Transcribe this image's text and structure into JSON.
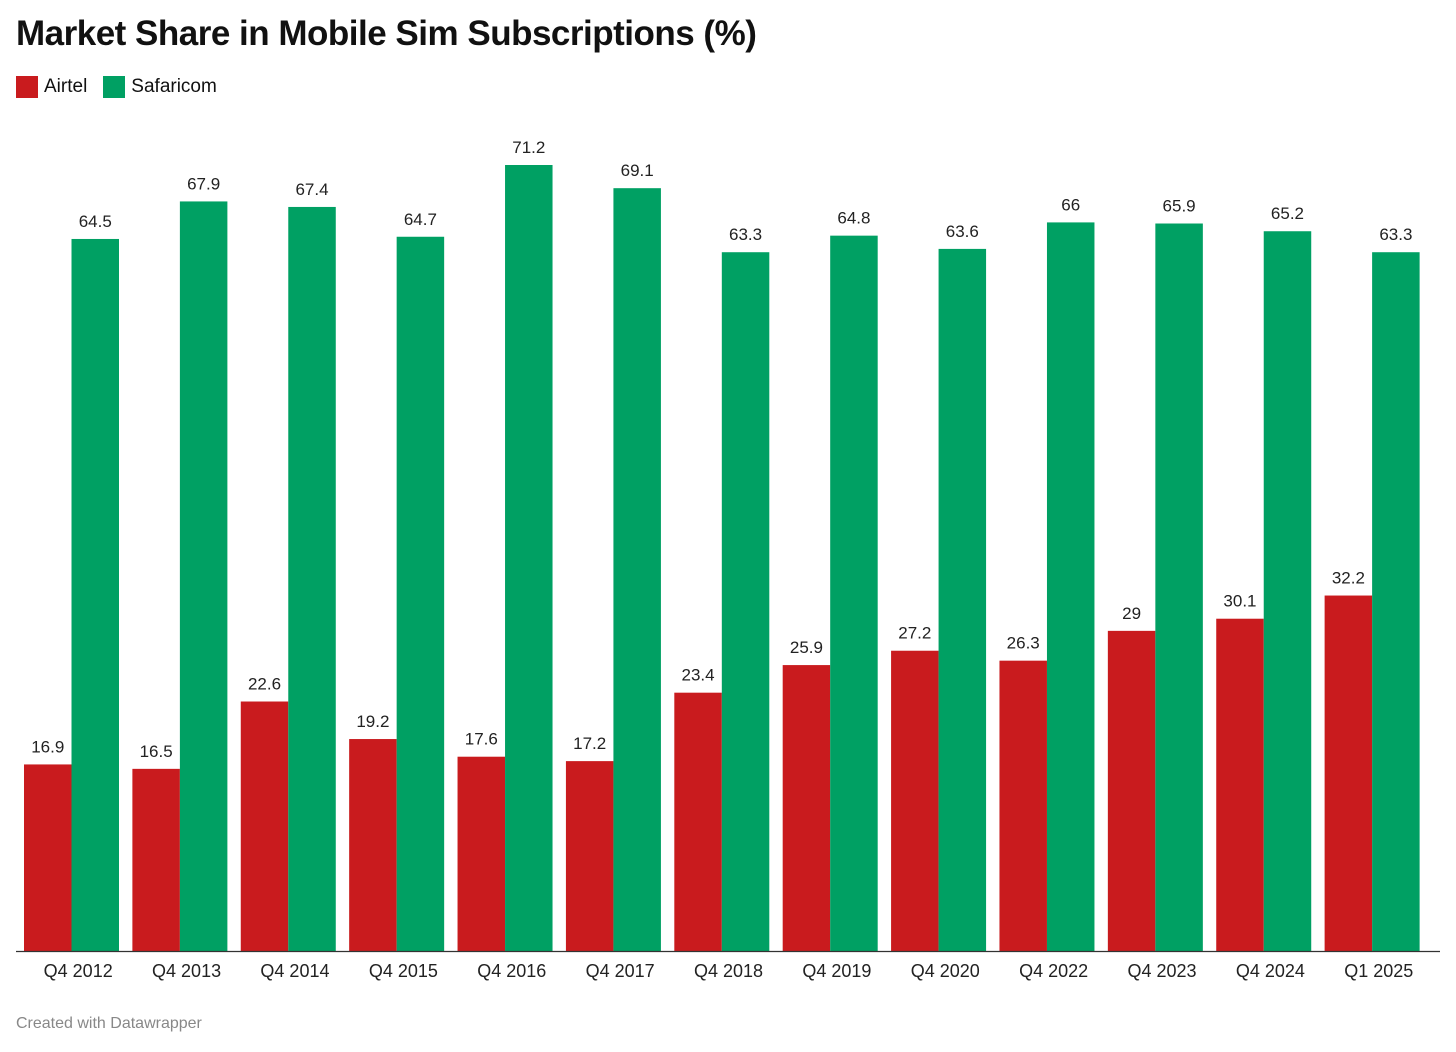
{
  "chart_data": {
    "type": "bar",
    "title": "Market Share in Mobile Sim Subscriptions (%)",
    "categories": [
      "Q4 2012",
      "Q4 2013",
      "Q4 2014",
      "Q4 2015",
      "Q4 2016",
      "Q4 2017",
      "Q4 2018",
      "Q4 2019",
      "Q4 2020",
      "Q4 2022",
      "Q4 2023",
      "Q4 2024",
      "Q1 2025"
    ],
    "series": [
      {
        "name": "Airtel",
        "color": "#c91b1e",
        "values": [
          16.9,
          16.5,
          22.6,
          19.2,
          17.6,
          17.2,
          23.4,
          25.9,
          27.2,
          26.3,
          29,
          30.1,
          32.2
        ],
        "labels": [
          "16.9",
          "16.5",
          "22.6",
          "19.2",
          "17.6",
          "17.2",
          "23.4",
          "25.9",
          "27.2",
          "26.3",
          "29",
          "30.1",
          "32.2"
        ]
      },
      {
        "name": "Safaricom",
        "color": "#00a063",
        "values": [
          64.5,
          67.9,
          67.4,
          64.7,
          71.2,
          69.1,
          63.3,
          64.8,
          63.6,
          66,
          65.9,
          65.2,
          63.3
        ],
        "labels": [
          "64.5",
          "67.9",
          "67.4",
          "64.7",
          "71.2",
          "69.1",
          "63.3",
          "64.8",
          "63.6",
          "66",
          "65.9",
          "65.2",
          "63.3"
        ]
      }
    ],
    "ylim": [
      0,
      71.2
    ],
    "grid": false,
    "legend": "top-left"
  },
  "footer": "Created with Datawrapper"
}
